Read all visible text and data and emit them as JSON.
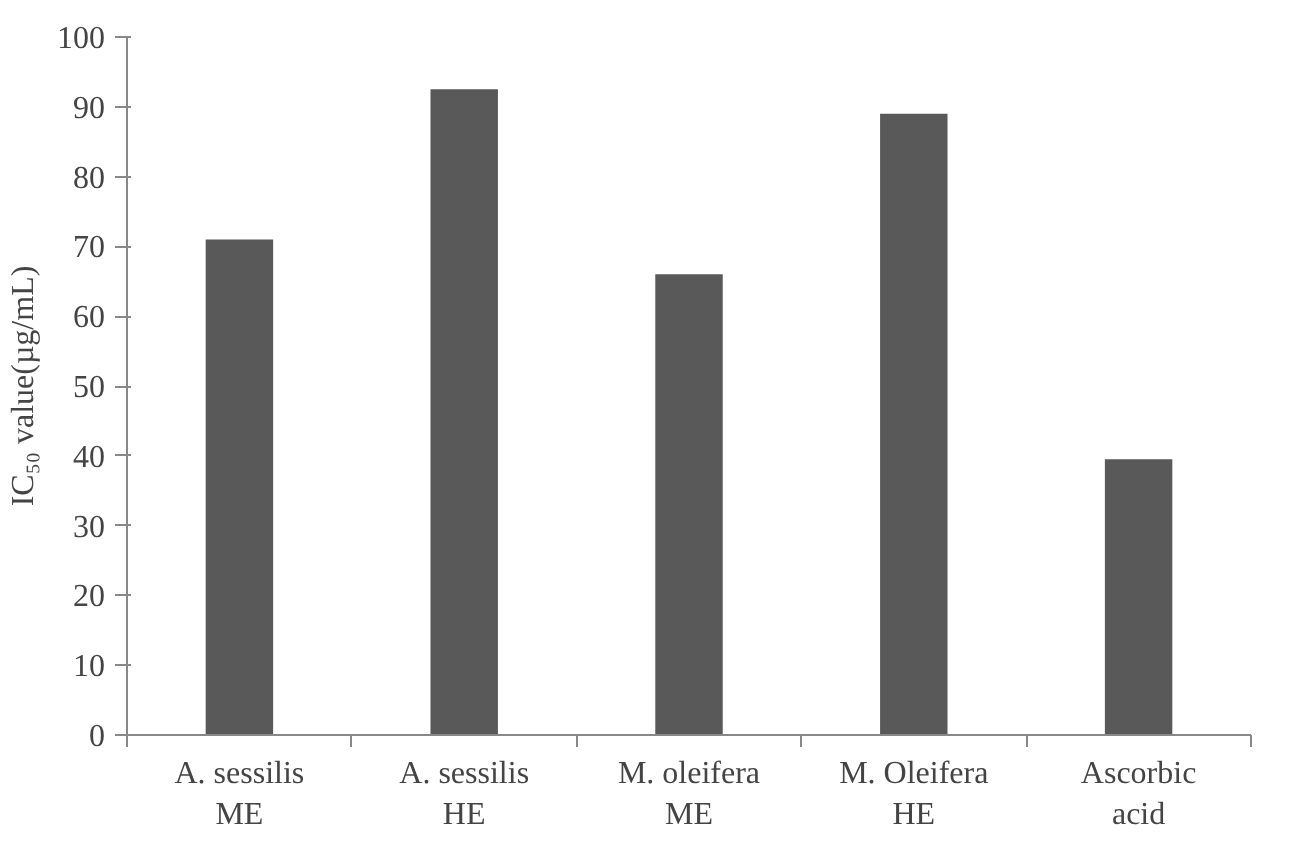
{
  "chart_data": {
    "type": "bar",
    "ylabel": "IC₅₀ value(µg/mL)",
    "categories": [
      "A. sessilis ME",
      "A. sessilis HE",
      "M. oleifera ME",
      "M. Oleifera HE",
      "Ascorbic acid"
    ],
    "values": [
      71,
      92.5,
      66,
      89,
      39.5
    ],
    "color": "#595959",
    "ylim": [
      0,
      100
    ],
    "yticks": [
      0,
      10,
      20,
      30,
      40,
      50,
      60,
      70,
      80,
      90,
      100
    ],
    "grid": false
  }
}
